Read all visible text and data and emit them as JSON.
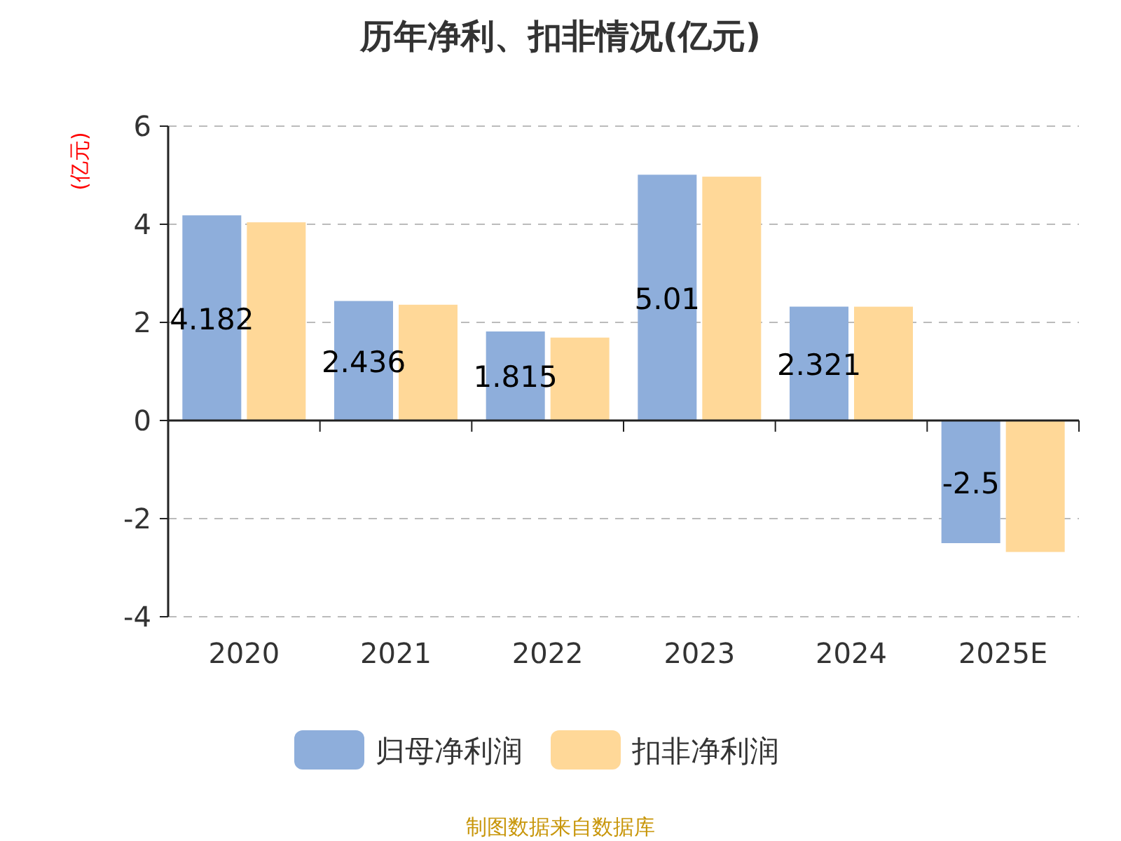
{
  "chart_data": {
    "type": "bar",
    "title": "历年净利、扣非情况(亿元)",
    "ylabel": "(亿元)",
    "categories": [
      "2020",
      "2021",
      "2022",
      "2023",
      "2024",
      "2025E"
    ],
    "series": [
      {
        "name": "归母净利润",
        "color": "#8eaedb",
        "values": [
          4.182,
          2.436,
          1.815,
          5.01,
          2.321,
          -2.5
        ],
        "value_labels": [
          "4.182",
          "2.436",
          "1.815",
          "5.01",
          "2.321",
          "-2.5"
        ]
      },
      {
        "name": "扣非净利润",
        "color": "#ffd898",
        "values": [
          4.04,
          2.36,
          1.69,
          4.97,
          2.32,
          -2.68
        ]
      }
    ],
    "ylim": [
      -4,
      6
    ],
    "yticks": [
      -4,
      -2,
      0,
      2,
      4,
      6
    ],
    "grid": "y",
    "legend": "bottom",
    "annotations": [
      "制图数据来自数据库"
    ]
  }
}
